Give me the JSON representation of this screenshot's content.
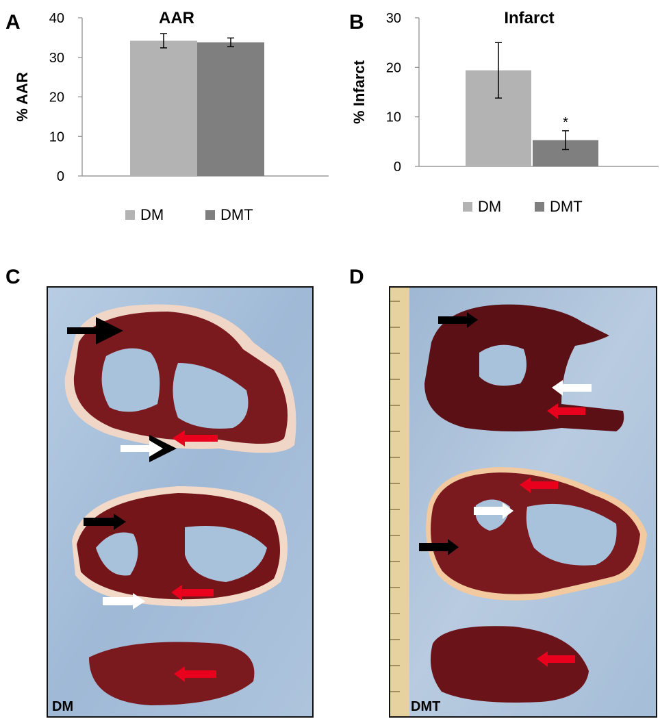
{
  "panels": {
    "a": "A",
    "b": "B",
    "c": "C",
    "d": "D"
  },
  "chart_data": [
    {
      "type": "bar",
      "title": "AAR",
      "ylabel": "% AAR",
      "xlabel": "",
      "ylim": [
        0,
        40
      ],
      "yticks": [
        0,
        10,
        20,
        30,
        40
      ],
      "series": [
        {
          "name": "DM",
          "values": [
            34.2
          ],
          "error": [
            1.8
          ],
          "color": "#b3b3b3"
        },
        {
          "name": "DMT",
          "values": [
            33.8
          ],
          "error": [
            1.1
          ],
          "color": "#7f7f7f"
        }
      ],
      "legend": "bottom",
      "grid": false
    },
    {
      "type": "bar",
      "title": "Infarct",
      "ylabel": "% Infarct",
      "xlabel": "",
      "ylim": [
        0,
        30
      ],
      "yticks": [
        0,
        10,
        20,
        30
      ],
      "series": [
        {
          "name": "DM",
          "values": [
            19.4
          ],
          "error": [
            5.6
          ],
          "color": "#b3b3b3"
        },
        {
          "name": "DMT",
          "values": [
            5.3
          ],
          "error": [
            1.9
          ],
          "color": "#7f7f7f"
        }
      ],
      "annotations": [
        "*"
      ],
      "legend": "bottom",
      "grid": false
    }
  ],
  "photos": {
    "left_caption": "DM",
    "right_caption": "DMT"
  },
  "colors": {
    "arrow_black": "#000000",
    "arrow_white": "#ffffff",
    "arrow_red": "#e8001c",
    "tissue": "#6e1418",
    "background_blue": "#a9c2dc"
  }
}
